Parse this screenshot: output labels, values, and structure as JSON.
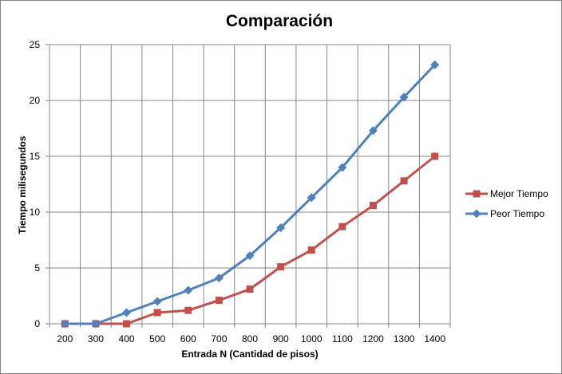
{
  "chart_data": {
    "type": "line",
    "title": "Comparación",
    "xlabel": "Entrada N (Cantidad de pisos)",
    "ylabel": "Tiempo milisegundos",
    "categories": [
      "200",
      "300",
      "400",
      "500",
      "600",
      "700",
      "800",
      "900",
      "1000",
      "1100",
      "1200",
      "1300",
      "1400"
    ],
    "ylim": [
      0,
      25
    ],
    "yticks": [
      0,
      5,
      10,
      15,
      20,
      25
    ],
    "grid": true,
    "legend_position": "right",
    "series": [
      {
        "name": "Mejor Tiempo",
        "color": "#C0504D",
        "marker": "square",
        "values": [
          0,
          0,
          0,
          1.0,
          1.2,
          2.1,
          3.1,
          5.1,
          6.6,
          8.7,
          10.6,
          12.8,
          15.0
        ]
      },
      {
        "name": "Peor Tiempo",
        "color": "#4F81BD",
        "marker": "diamond",
        "values": [
          0,
          0,
          1.0,
          2.0,
          3.0,
          4.1,
          6.1,
          8.6,
          11.3,
          14.0,
          17.3,
          20.3,
          23.2
        ]
      }
    ]
  }
}
